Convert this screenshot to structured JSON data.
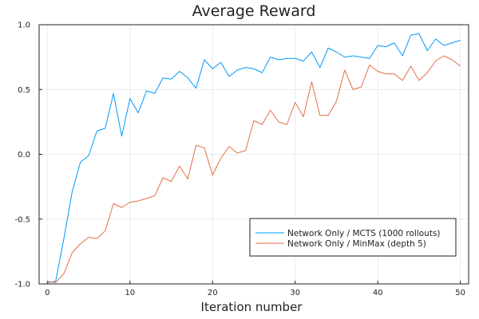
{
  "chart_data": {
    "type": "line",
    "title": "Average Reward",
    "xlabel": "Iteration number",
    "ylabel": "",
    "xlim": [
      -1,
      51
    ],
    "ylim": [
      -1.0,
      1.0
    ],
    "xticks": [
      0,
      10,
      20,
      30,
      40,
      50
    ],
    "yticks": [
      -1.0,
      -0.5,
      0.0,
      0.5,
      1.0
    ],
    "ytick_labels": [
      "-1.0",
      "-0.5",
      "0.0",
      "0.5",
      "1.0"
    ],
    "grid": true,
    "legend_position": "bottom-right",
    "x": [
      0,
      1,
      2,
      3,
      4,
      5,
      6,
      7,
      8,
      9,
      10,
      11,
      12,
      13,
      14,
      15,
      16,
      17,
      18,
      19,
      20,
      21,
      22,
      23,
      24,
      25,
      26,
      27,
      28,
      29,
      30,
      31,
      32,
      33,
      34,
      35,
      36,
      37,
      38,
      39,
      40,
      41,
      42,
      43,
      44,
      45,
      46,
      47,
      48,
      49,
      50
    ],
    "series": [
      {
        "name": "Network Only  / MCTS (1000 rollouts)",
        "color": "#009AFA",
        "values": [
          -0.99,
          -0.98,
          -0.65,
          -0.29,
          -0.06,
          -0.01,
          0.18,
          0.2,
          0.47,
          0.14,
          0.43,
          0.32,
          0.49,
          0.47,
          0.59,
          0.58,
          0.64,
          0.59,
          0.51,
          0.73,
          0.66,
          0.71,
          0.6,
          0.65,
          0.67,
          0.66,
          0.63,
          0.75,
          0.73,
          0.74,
          0.74,
          0.72,
          0.79,
          0.67,
          0.82,
          0.79,
          0.75,
          0.76,
          0.75,
          0.74,
          0.84,
          0.83,
          0.86,
          0.76,
          0.92,
          0.93,
          0.8,
          0.89,
          0.84,
          0.86,
          0.88
        ]
      },
      {
        "name": "Network Only  / MinMax (depth 5)",
        "color": "#E36F47",
        "values": [
          -0.98,
          -0.99,
          -0.92,
          -0.76,
          -0.69,
          -0.64,
          -0.65,
          -0.59,
          -0.38,
          -0.41,
          -0.37,
          -0.36,
          -0.34,
          -0.32,
          -0.18,
          -0.21,
          -0.09,
          -0.19,
          0.07,
          0.05,
          -0.16,
          -0.03,
          0.06,
          0.01,
          0.03,
          0.26,
          0.23,
          0.34,
          0.25,
          0.23,
          0.4,
          0.29,
          0.56,
          0.3,
          0.3,
          0.41,
          0.65,
          0.5,
          0.52,
          0.69,
          0.64,
          0.62,
          0.62,
          0.57,
          0.68,
          0.57,
          0.63,
          0.72,
          0.76,
          0.73,
          0.68
        ]
      }
    ]
  }
}
